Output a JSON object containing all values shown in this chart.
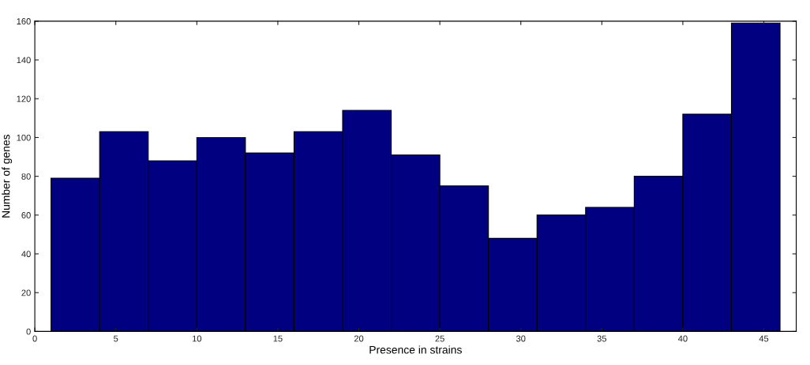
{
  "chart_data": {
    "type": "histogram",
    "xlabel": "Presence in strains",
    "ylabel": "Number of genes",
    "bins": [
      1,
      4,
      7,
      10,
      13,
      16,
      19,
      22,
      25,
      28,
      31,
      34,
      37,
      40,
      43,
      46
    ],
    "values": [
      79,
      103,
      88,
      100,
      92,
      103,
      114,
      91,
      75,
      48,
      60,
      64,
      80,
      112,
      159
    ],
    "color": "#000080",
    "xlim": [
      0,
      47
    ],
    "xticks": [
      0,
      5,
      10,
      15,
      20,
      25,
      30,
      35,
      40,
      45
    ],
    "ylim": [
      0,
      160
    ],
    "yticks": [
      0,
      20,
      40,
      60,
      80,
      100,
      120,
      140,
      160
    ],
    "grid": false
  }
}
